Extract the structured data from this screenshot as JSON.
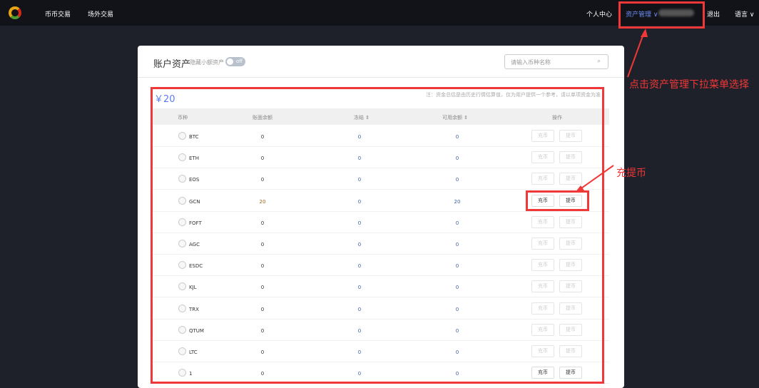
{
  "nav": {
    "brand_icon": "logo",
    "left": [
      "币币交易",
      "场外交易"
    ],
    "personal": "个人中心",
    "assets": "资产管理",
    "logout": "退出",
    "language": "语言"
  },
  "page": {
    "title": "账户资产",
    "hide_small": "隐藏小额资产",
    "toggle": "off",
    "search_placeholder": "请输入币种名称",
    "total": "￥20",
    "note": "注：资金总估是由历史行情估算值，仅为用户提供一个参考，请以单项资金为准"
  },
  "table": {
    "headers": [
      "币种",
      "账面余额",
      "冻结",
      "可用余额",
      "操作"
    ],
    "rows": [
      {
        "coin": "BTC",
        "balance": "0",
        "frozen": "0",
        "available": "0",
        "active": false
      },
      {
        "coin": "ETH",
        "balance": "0",
        "frozen": "0",
        "available": "0",
        "active": false
      },
      {
        "coin": "EOS",
        "balance": "0",
        "frozen": "0",
        "available": "0",
        "active": false
      },
      {
        "coin": "GCN",
        "balance": "20",
        "frozen": "0",
        "available": "20",
        "active": true
      },
      {
        "coin": "FOFT",
        "balance": "0",
        "frozen": "0",
        "available": "0",
        "active": false
      },
      {
        "coin": "AGC",
        "balance": "0",
        "frozen": "0",
        "available": "0",
        "active": false
      },
      {
        "coin": "ESDC",
        "balance": "0",
        "frozen": "0",
        "available": "0",
        "active": false
      },
      {
        "coin": "KJL",
        "balance": "0",
        "frozen": "0",
        "available": "0",
        "active": false
      },
      {
        "coin": "TRX",
        "balance": "0",
        "frozen": "0",
        "available": "0",
        "active": false
      },
      {
        "coin": "QTUM",
        "balance": "0",
        "frozen": "0",
        "available": "0",
        "active": false
      },
      {
        "coin": "LTC",
        "balance": "0",
        "frozen": "0",
        "available": "0",
        "active": false
      },
      {
        "coin": "1",
        "balance": "0",
        "frozen": "0",
        "available": "0",
        "active": true
      }
    ],
    "deposit": "充币",
    "withdraw": "提币"
  },
  "annotations": {
    "menu": "点击资产管理下拉菜单选择",
    "buttons": "充提币"
  },
  "colors": {
    "accent": "#5b7cf0",
    "annotation": "#f03838"
  }
}
